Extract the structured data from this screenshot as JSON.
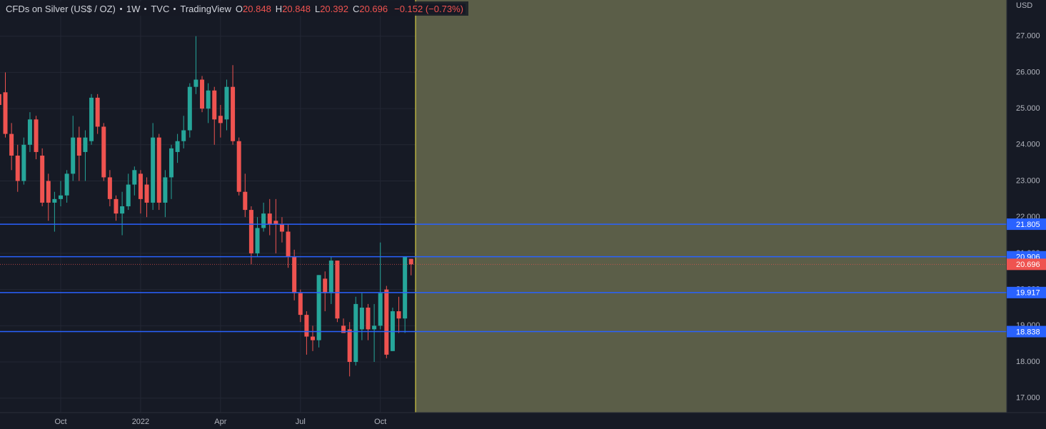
{
  "chart_data": {
    "type": "candlestick",
    "title": "CFDs on Silver (US$ / OZ)",
    "interval": "1W",
    "source": "TVC",
    "platform": "TradingView",
    "ohlc_labels": [
      "O",
      "H",
      "L",
      "C"
    ],
    "change_label": "−0.152 (−0.73%)",
    "currency": "USD",
    "categories": [
      null,
      null,
      null,
      null,
      null,
      null,
      null,
      null,
      null,
      null,
      "Oct",
      null,
      null,
      null,
      null,
      null,
      null,
      null,
      null,
      null,
      null,
      null,
      null,
      "2022",
      null,
      null,
      null,
      null,
      null,
      null,
      null,
      null,
      null,
      null,
      null,
      null,
      "Apr",
      null,
      null,
      null,
      null,
      null,
      null,
      null,
      null,
      null,
      null,
      null,
      null,
      "Jul",
      null,
      null,
      null,
      null,
      null,
      null,
      null,
      null,
      null,
      null,
      null,
      null,
      "Oct",
      null,
      null,
      null,
      null,
      null
    ],
    "open": [
      25.4,
      25.45,
      24.3,
      23.7,
      23.0,
      24.0,
      24.7,
      23.7,
      23.0,
      22.4,
      22.5,
      22.6,
      23.2,
      24.2,
      23.8,
      24.1,
      25.3,
      24.5,
      23.1,
      22.5,
      22.1,
      22.3,
      22.9,
      23.2,
      22.9,
      22.4,
      24.2,
      22.4,
      23.1,
      23.8,
      24.1,
      24.4,
      25.6,
      25.8,
      25.0,
      25.5,
      24.8,
      24.7,
      25.6,
      24.1,
      22.7,
      22.2,
      21.0,
      21.7,
      22.1,
      21.9,
      21.8,
      21.6,
      20.9,
      19.9,
      19.3,
      18.7,
      18.6,
      20.3,
      19.9,
      20.8,
      19.0,
      18.9,
      18.0,
      18.9,
      19.5,
      18.9,
      19.0,
      20.0,
      18.3,
      19.4,
      19.2,
      20.848
    ],
    "high": [
      25.6,
      26.0,
      24.6,
      24.0,
      24.2,
      24.9,
      24.8,
      23.9,
      23.2,
      22.7,
      23.0,
      23.3,
      24.8,
      24.5,
      24.4,
      25.4,
      25.4,
      24.6,
      23.3,
      22.6,
      22.7,
      23.2,
      23.4,
      23.3,
      23.1,
      24.6,
      24.3,
      23.3,
      24.0,
      24.3,
      24.8,
      25.7,
      27.0,
      25.9,
      25.7,
      25.6,
      25.1,
      25.8,
      26.2,
      24.2,
      23.2,
      22.3,
      22.0,
      22.4,
      22.5,
      22.5,
      22.0,
      21.8,
      21.1,
      20.0,
      19.4,
      19.0,
      20.4,
      20.5,
      20.9,
      20.8,
      19.2,
      19.1,
      19.8,
      19.9,
      19.6,
      19.6,
      21.3,
      20.1,
      19.5,
      19.8,
      20.9,
      20.848
    ],
    "low": [
      24.9,
      24.2,
      23.3,
      22.7,
      22.9,
      23.8,
      23.6,
      22.3,
      21.9,
      21.6,
      22.3,
      22.4,
      23.0,
      23.0,
      23.0,
      24.0,
      24.3,
      23.0,
      22.3,
      21.9,
      21.5,
      22.2,
      22.6,
      22.1,
      22.0,
      22.2,
      22.2,
      22.0,
      22.5,
      23.5,
      23.9,
      24.2,
      25.4,
      24.9,
      24.6,
      24.0,
      24.2,
      24.4,
      24.0,
      22.6,
      22.0,
      20.7,
      20.9,
      21.6,
      21.5,
      21.0,
      21.3,
      20.6,
      19.7,
      19.1,
      18.2,
      18.3,
      18.4,
      19.4,
      19.6,
      19.1,
      18.8,
      17.6,
      17.9,
      18.6,
      18.6,
      18.0,
      18.9,
      18.1,
      18.3,
      18.8,
      18.8,
      20.392
    ],
    "close": [
      25.1,
      24.3,
      23.7,
      23.0,
      24.0,
      24.7,
      23.8,
      22.4,
      22.4,
      22.5,
      22.6,
      23.2,
      24.2,
      23.7,
      24.2,
      25.3,
      24.5,
      23.1,
      22.5,
      22.1,
      22.3,
      22.9,
      23.3,
      22.5,
      22.4,
      24.2,
      22.4,
      23.1,
      23.9,
      24.1,
      24.4,
      25.6,
      25.8,
      25.0,
      25.5,
      24.7,
      24.6,
      25.6,
      24.1,
      22.7,
      22.2,
      21.0,
      21.7,
      22.1,
      21.8,
      21.8,
      21.6,
      20.9,
      19.9,
      19.3,
      18.7,
      18.6,
      20.4,
      19.9,
      20.8,
      19.2,
      18.8,
      18.0,
      19.6,
      19.5,
      18.9,
      19.0,
      19.9,
      18.2,
      19.4,
      19.2,
      20.9,
      20.696
    ],
    "up_color": "#26a69a",
    "down_color": "#ef5350",
    "ylim": [
      16.6,
      28.0
    ],
    "yticks": [
      {
        "value": 17,
        "label": "17.000"
      },
      {
        "value": 18,
        "label": "18.000"
      },
      {
        "value": 19,
        "label": "19.000"
      },
      {
        "value": 20,
        "label": "20.000"
      },
      {
        "value": 21,
        "label": "21.000"
      },
      {
        "value": 22,
        "label": "22.000"
      },
      {
        "value": 23,
        "label": "23.000"
      },
      {
        "value": 24,
        "label": "24.000"
      },
      {
        "value": 25,
        "label": "25.000"
      },
      {
        "value": 26,
        "label": "26.000"
      },
      {
        "value": 27,
        "label": "27.000"
      }
    ],
    "grid": true,
    "hlines": [
      21.805,
      20.906,
      19.917,
      18.838
    ],
    "hline_color": "#2962ff"
  }
}
